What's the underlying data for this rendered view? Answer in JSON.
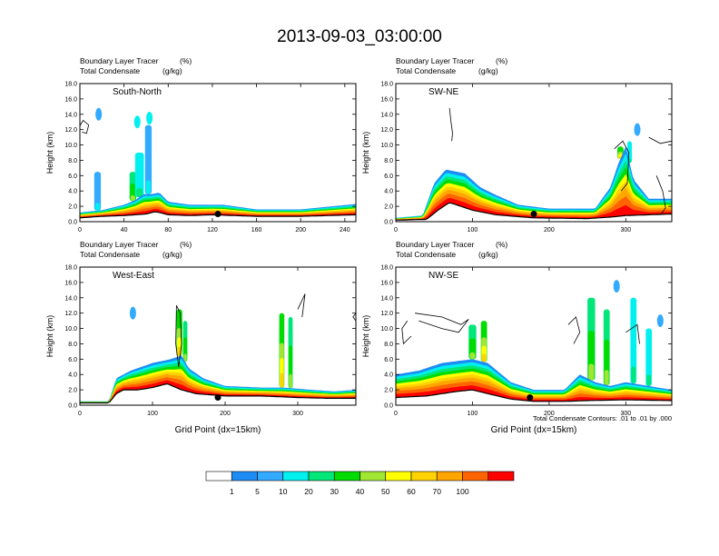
{
  "title": "2013-09-03_03:00:00",
  "chart_data": [
    {
      "type": "heatmap",
      "panel_label": "South-North",
      "left_string_1": "Boundary Layer Tracer",
      "right_string_1": "(%)",
      "left_string_2": "Total Condensate",
      "right_string_2": "(g/kg)",
      "ylabel": "Height (km)",
      "xlabel": "",
      "xlim": [
        0,
        250
      ],
      "ylim": [
        0,
        18
      ],
      "xticks": [
        "0",
        "40",
        "80",
        "120",
        "160",
        "200",
        "240"
      ],
      "yticks": [
        "0.0",
        "2.0",
        "4.0",
        "6.0",
        "8.0",
        "10.0",
        "12.0",
        "14.0",
        "16.0",
        "18.0"
      ],
      "terrain_km": [
        [
          0,
          0.5
        ],
        [
          20,
          0.7
        ],
        [
          40,
          0.8
        ],
        [
          60,
          1.0
        ],
        [
          68,
          1.3
        ],
        [
          72,
          1.2
        ],
        [
          80,
          0.9
        ],
        [
          100,
          0.8
        ],
        [
          120,
          0.9
        ],
        [
          140,
          0.8
        ],
        [
          160,
          0.7
        ],
        [
          200,
          0.7
        ],
        [
          250,
          0.9
        ]
      ],
      "boundary_layer_top_km": [
        [
          0,
          1.2
        ],
        [
          20,
          1.5
        ],
        [
          40,
          2.2
        ],
        [
          50,
          2.8
        ],
        [
          58,
          3.6
        ],
        [
          66,
          3.6
        ],
        [
          72,
          3.8
        ],
        [
          80,
          2.6
        ],
        [
          100,
          2.2
        ],
        [
          130,
          2.2
        ],
        [
          160,
          1.6
        ],
        [
          200,
          1.6
        ],
        [
          250,
          2.3
        ]
      ],
      "convective_plumes": [
        {
          "x": 48,
          "width": 6,
          "top_km": 6.5,
          "value": 20
        },
        {
          "x": 54,
          "width": 8,
          "top_km": 9.0,
          "value": 10
        },
        {
          "x": 62,
          "width": 6,
          "top_km": 12.6,
          "value": 5
        },
        {
          "x": 16,
          "width": 6,
          "top_km": 6.5,
          "value": 5
        }
      ],
      "isolated_cells": [
        {
          "x": 17,
          "y_km": 14.0,
          "value": 5
        },
        {
          "x": 52,
          "y_km": 13.0,
          "value": 10
        },
        {
          "x": 63,
          "y_km": 13.5,
          "value": 10
        }
      ],
      "condensate_contours": [
        [
          [
            0,
            12.5
          ],
          [
            3,
            13.2
          ],
          [
            8,
            12.6
          ],
          [
            6,
            11.5
          ],
          [
            2,
            11.7
          ]
        ]
      ],
      "marker": {
        "x": 125,
        "y_km": 1.0
      }
    },
    {
      "type": "heatmap",
      "panel_label": "SW-NE",
      "left_string_1": "Boundary Layer Tracer",
      "right_string_1": "(%)",
      "left_string_2": "Total Condensate",
      "right_string_2": "(g/kg)",
      "ylabel": "Height (km)",
      "xlabel": "",
      "xlim": [
        0,
        360
      ],
      "ylim": [
        0,
        18
      ],
      "xticks": [
        "0",
        "100",
        "200",
        "300"
      ],
      "yticks": [
        "0.0",
        "2.0",
        "4.0",
        "6.0",
        "8.0",
        "10.0",
        "12.0",
        "14.0",
        "16.0",
        "18.0"
      ],
      "terrain_km": [
        [
          0,
          0.2
        ],
        [
          40,
          0.3
        ],
        [
          55,
          1.5
        ],
        [
          70,
          2.5
        ],
        [
          85,
          2.0
        ],
        [
          100,
          1.5
        ],
        [
          130,
          0.9
        ],
        [
          180,
          0.5
        ],
        [
          250,
          0.4
        ],
        [
          280,
          0.6
        ],
        [
          300,
          0.8
        ],
        [
          330,
          0.9
        ],
        [
          360,
          1.0
        ]
      ],
      "boundary_layer_top_km": [
        [
          0,
          0.5
        ],
        [
          35,
          0.8
        ],
        [
          50,
          5.0
        ],
        [
          65,
          6.8
        ],
        [
          90,
          6.3
        ],
        [
          110,
          4.5
        ],
        [
          130,
          3.5
        ],
        [
          160,
          2.2
        ],
        [
          200,
          1.7
        ],
        [
          260,
          1.7
        ],
        [
          280,
          4.5
        ],
        [
          290,
          7.5
        ],
        [
          300,
          9.8
        ],
        [
          310,
          5.5
        ],
        [
          330,
          3.0
        ],
        [
          360,
          3.0
        ]
      ],
      "convective_plumes": [
        {
          "x": 293,
          "width": 8,
          "top_km": 9.8,
          "value": 30
        },
        {
          "x": 305,
          "width": 6,
          "top_km": 10.5,
          "value": 10
        }
      ],
      "isolated_cells": [
        {
          "x": 315,
          "y_km": 12.0,
          "value": 5
        }
      ],
      "condensate_contours": [
        [
          [
            70,
            14.8
          ],
          [
            72,
            13.0
          ],
          [
            74,
            11.5
          ],
          [
            73,
            10.5
          ]
        ],
        [
          [
            285,
            9.5
          ],
          [
            296,
            10.5
          ],
          [
            304,
            9.0
          ],
          [
            302,
            5.0
          ],
          [
            294,
            4.0
          ]
        ],
        [
          [
            330,
            11.0
          ],
          [
            345,
            10.2
          ],
          [
            360,
            10.5
          ]
        ],
        [
          [
            340,
            6.0
          ],
          [
            348,
            4.0
          ],
          [
            352,
            1.8
          ],
          [
            346,
            1.0
          ]
        ]
      ],
      "marker": {
        "x": 180,
        "y_km": 1.0
      }
    },
    {
      "type": "heatmap",
      "panel_label": "West-East",
      "left_string_1": "Boundary Layer Tracer",
      "right_string_1": "(%)",
      "left_string_2": "Total Condensate",
      "right_string_2": "(g/kg)",
      "ylabel": "Height (km)",
      "xlabel": "Grid Point (dx=15km)",
      "xlim": [
        0,
        380
      ],
      "ylim": [
        0,
        18
      ],
      "xticks": [
        "0",
        "100",
        "200",
        "300"
      ],
      "yticks": [
        "0.0",
        "2.0",
        "4.0",
        "6.0",
        "8.0",
        "10.0",
        "12.0",
        "14.0",
        "16.0",
        "18.0"
      ],
      "terrain_km": [
        [
          0,
          0.3
        ],
        [
          40,
          0.3
        ],
        [
          50,
          1.5
        ],
        [
          60,
          2.0
        ],
        [
          80,
          2.0
        ],
        [
          100,
          2.3
        ],
        [
          120,
          2.8
        ],
        [
          140,
          2.0
        ],
        [
          160,
          1.5
        ],
        [
          200,
          1.2
        ],
        [
          250,
          1.2
        ],
        [
          300,
          1.0
        ],
        [
          340,
          0.9
        ],
        [
          380,
          0.9
        ]
      ],
      "boundary_layer_top_km": [
        [
          0,
          0.5
        ],
        [
          40,
          0.5
        ],
        [
          50,
          3.5
        ],
        [
          70,
          4.5
        ],
        [
          100,
          5.5
        ],
        [
          125,
          6.0
        ],
        [
          140,
          6.5
        ],
        [
          150,
          4.8
        ],
        [
          170,
          3.5
        ],
        [
          200,
          2.5
        ],
        [
          250,
          2.3
        ],
        [
          280,
          2.3
        ],
        [
          320,
          2.0
        ],
        [
          350,
          1.8
        ],
        [
          380,
          2.0
        ]
      ],
      "convective_plumes": [
        {
          "x": 137,
          "width": 8,
          "top_km": 12.5,
          "value": 30
        },
        {
          "x": 145,
          "width": 6,
          "top_km": 11.0,
          "value": 20
        },
        {
          "x": 278,
          "width": 7,
          "top_km": 12.0,
          "value": 30
        },
        {
          "x": 290,
          "width": 6,
          "top_km": 11.5,
          "value": 20
        }
      ],
      "isolated_cells": [
        {
          "x": 73,
          "y_km": 12.0,
          "value": 5
        }
      ],
      "condensate_contours": [
        [
          [
            133,
            13.0
          ],
          [
            138,
            12.0
          ],
          [
            140,
            8.0
          ],
          [
            136,
            5.0
          ],
          [
            132,
            8.0
          ],
          [
            133,
            13.0
          ]
        ],
        [
          [
            300,
            12.5
          ],
          [
            310,
            14.5
          ],
          [
            306,
            11.5
          ]
        ],
        [
          [
            380,
            12.0
          ],
          [
            376,
            11.5
          ],
          [
            380,
            11.0
          ]
        ]
      ],
      "marker": {
        "x": 190,
        "y_km": 1.0
      }
    },
    {
      "type": "heatmap",
      "panel_label": "NW-SE",
      "left_string_1": "Boundary Layer Tracer",
      "right_string_1": "(%)",
      "left_string_2": "Total Condensate",
      "right_string_2": "(g/kg)",
      "ylabel": "Height (km)",
      "xlabel": "Grid Point (dx=15km)",
      "xlim": [
        0,
        360
      ],
      "ylim": [
        0,
        18
      ],
      "xticks": [
        "0",
        "100",
        "200",
        "300"
      ],
      "yticks": [
        "0.0",
        "2.0",
        "4.0",
        "6.0",
        "8.0",
        "10.0",
        "12.0",
        "14.0",
        "16.0",
        "18.0"
      ],
      "terrain_km": [
        [
          0,
          1.0
        ],
        [
          40,
          1.2
        ],
        [
          80,
          1.8
        ],
        [
          100,
          2.0
        ],
        [
          120,
          1.5
        ],
        [
          150,
          0.8
        ],
        [
          180,
          0.5
        ],
        [
          220,
          0.5
        ],
        [
          250,
          0.6
        ],
        [
          300,
          0.7
        ],
        [
          360,
          0.6
        ]
      ],
      "boundary_layer_top_km": [
        [
          0,
          4.0
        ],
        [
          30,
          4.5
        ],
        [
          60,
          5.5
        ],
        [
          100,
          6.0
        ],
        [
          120,
          5.5
        ],
        [
          150,
          3.0
        ],
        [
          180,
          2.0
        ],
        [
          220,
          2.0
        ],
        [
          240,
          4.0
        ],
        [
          260,
          3.0
        ],
        [
          280,
          2.5
        ],
        [
          300,
          3.0
        ],
        [
          330,
          2.5
        ],
        [
          360,
          2.0
        ]
      ],
      "convective_plumes": [
        {
          "x": 100,
          "width": 10,
          "top_km": 10.5,
          "value": 20
        },
        {
          "x": 115,
          "width": 8,
          "top_km": 11.0,
          "value": 30
        },
        {
          "x": 255,
          "width": 10,
          "top_km": 14.0,
          "value": 20
        },
        {
          "x": 275,
          "width": 8,
          "top_km": 12.5,
          "value": 20
        },
        {
          "x": 310,
          "width": 8,
          "top_km": 14.0,
          "value": 10
        },
        {
          "x": 330,
          "width": 8,
          "top_km": 10.0,
          "value": 10
        }
      ],
      "isolated_cells": [
        {
          "x": 345,
          "y_km": 11.0,
          "value": 5
        },
        {
          "x": 288,
          "y_km": 15.5,
          "value": 5
        }
      ],
      "condensate_contours": [
        [
          [
            15,
            11.0
          ],
          [
            8,
            10.0
          ],
          [
            10,
            8.0
          ],
          [
            20,
            9.0
          ]
        ],
        [
          [
            25,
            12.0
          ],
          [
            60,
            11.5
          ],
          [
            85,
            10.5
          ],
          [
            95,
            11.2
          ],
          [
            82,
            9.5
          ],
          [
            60,
            10.0
          ],
          [
            30,
            11.0
          ]
        ],
        [
          [
            225,
            10.5
          ],
          [
            235,
            11.5
          ],
          [
            240,
            9.5
          ],
          [
            232,
            8.0
          ]
        ],
        [
          [
            300,
            9.5
          ],
          [
            315,
            10.5
          ],
          [
            318,
            8.0
          ]
        ]
      ],
      "marker": {
        "x": 175,
        "y_km": 1.0
      }
    }
  ],
  "contour_note": "Total Condensate Contours: .01 to .01 by .000",
  "colorbar": {
    "labels": [
      "1",
      "5",
      "10",
      "20",
      "30",
      "40",
      "50",
      "60",
      "70",
      "100"
    ],
    "colors": [
      "#ffffff",
      "#1e8cf5",
      "#32aaff",
      "#00f0f0",
      "#00e678",
      "#00dc00",
      "#a0e632",
      "#ffff00",
      "#ffd200",
      "#ffa500",
      "#ff6400",
      "#ff0000"
    ]
  }
}
